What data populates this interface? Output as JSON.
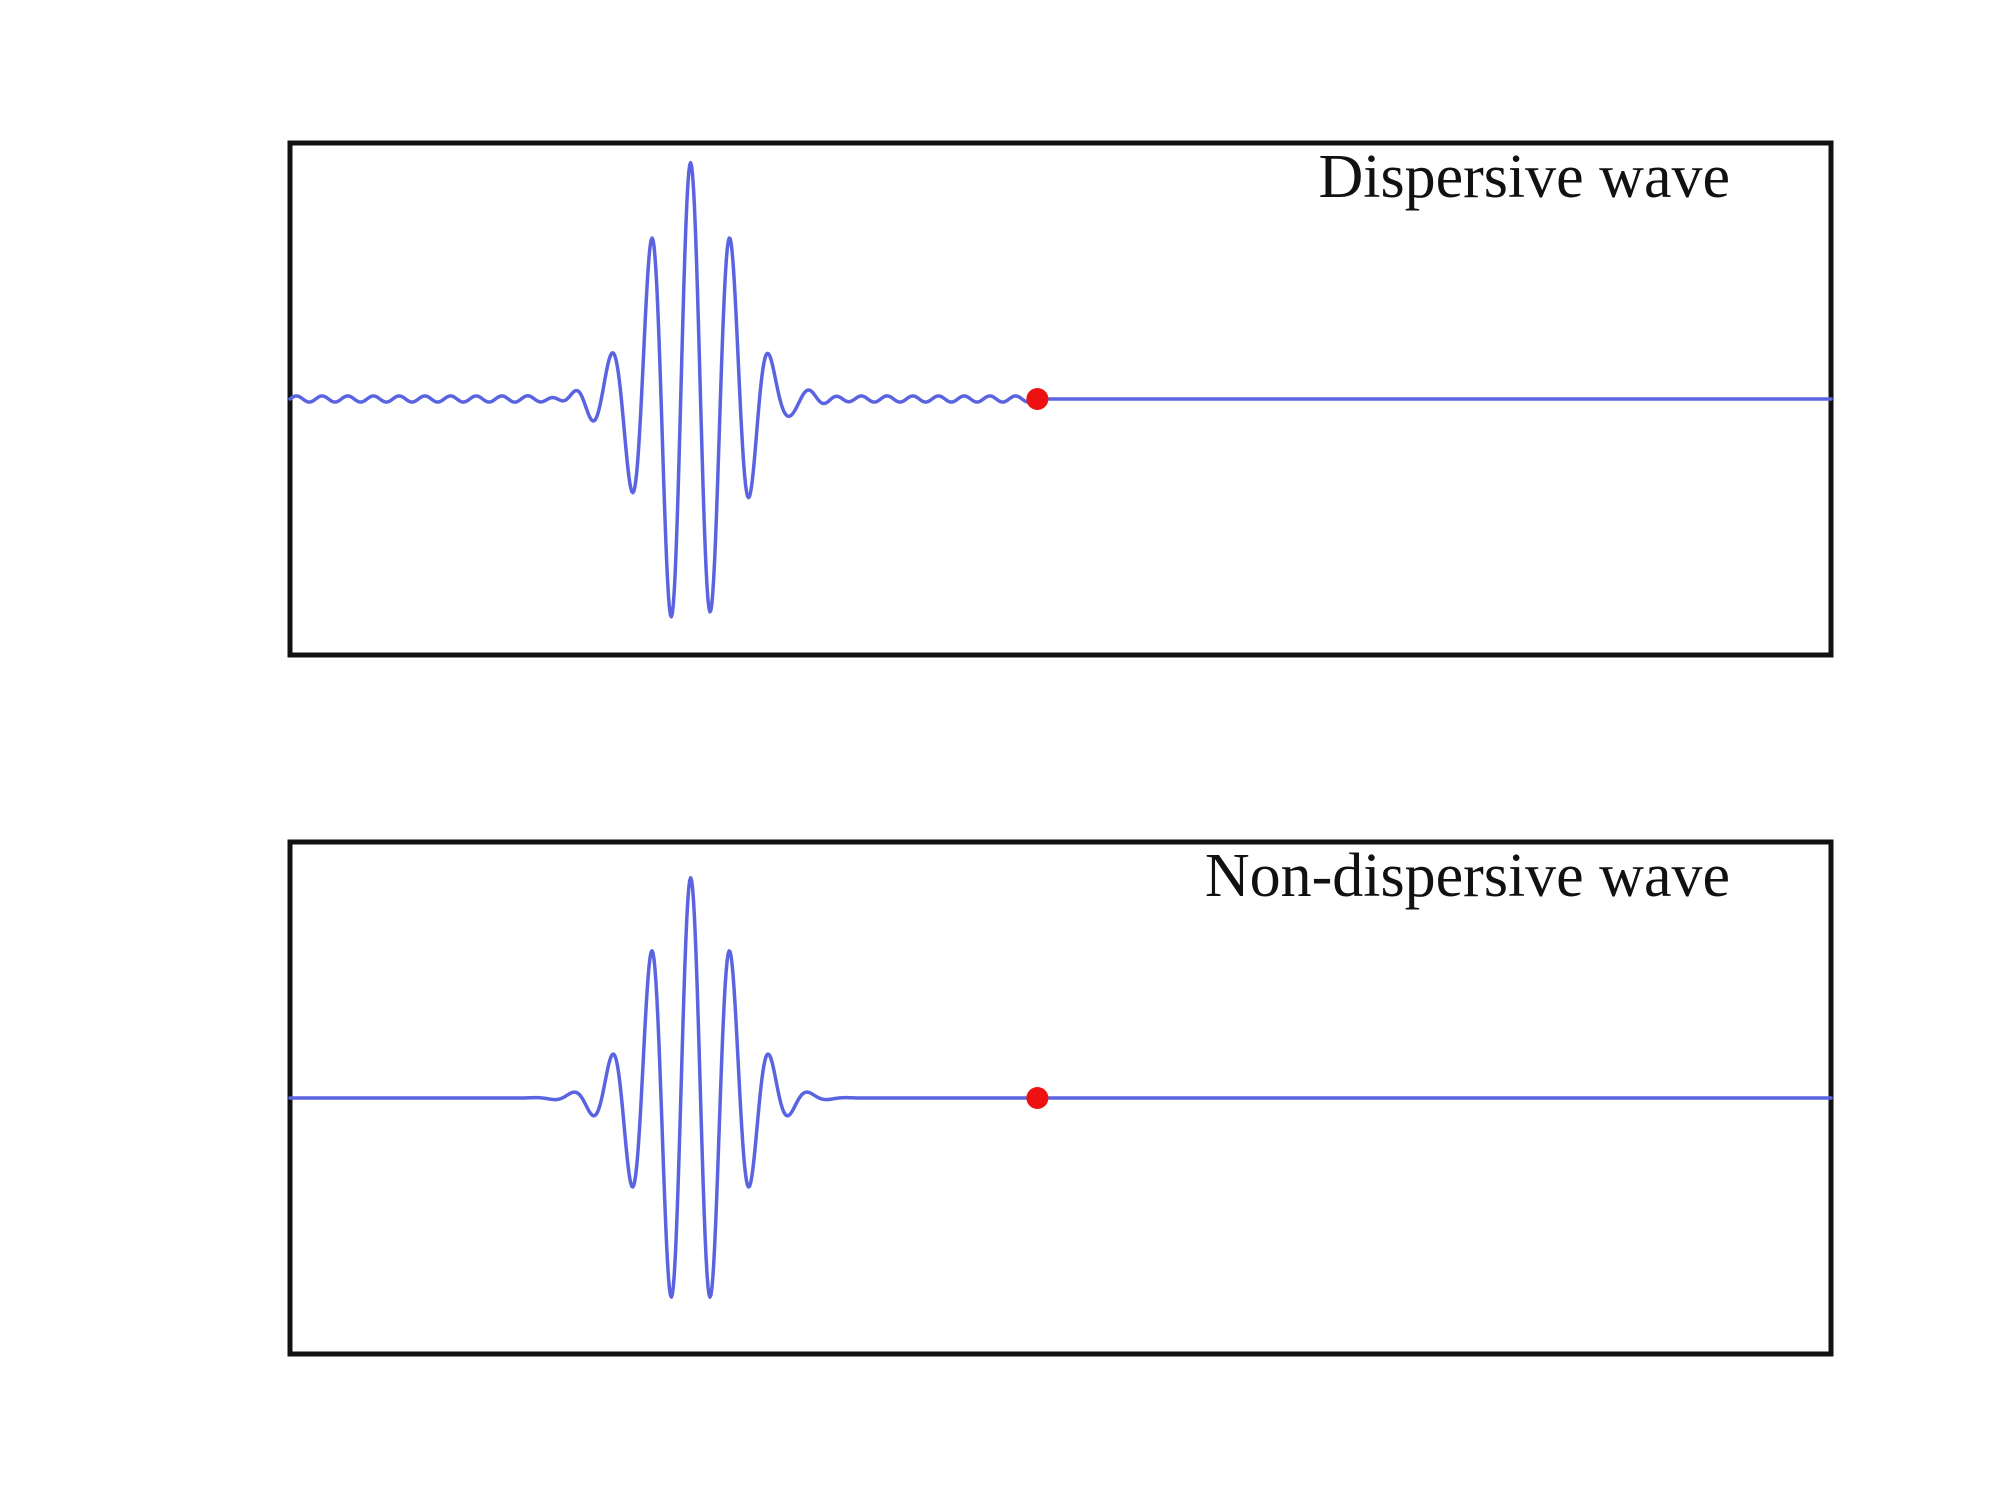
{
  "colors": {
    "wave": "#5a64e0",
    "marker": "#ee1111",
    "frame": "#111111"
  },
  "panels": [
    {
      "title": "Dispersive wave",
      "packet": {
        "center": 0.26,
        "width": 0.04,
        "cycles_per_unit": 39,
        "amplitude": 0.93
      },
      "ripple": {
        "amplitude": 0.012,
        "cycles_per_unit": 60,
        "from": 0.0,
        "to": 0.485
      },
      "marker_x": 0.485
    },
    {
      "title": "Non-dispersive wave",
      "packet": {
        "center": 0.26,
        "width": 0.04,
        "cycles_per_unit": 39,
        "amplitude": 0.86
      },
      "ripple": null,
      "marker_x": 0.485
    }
  ]
}
